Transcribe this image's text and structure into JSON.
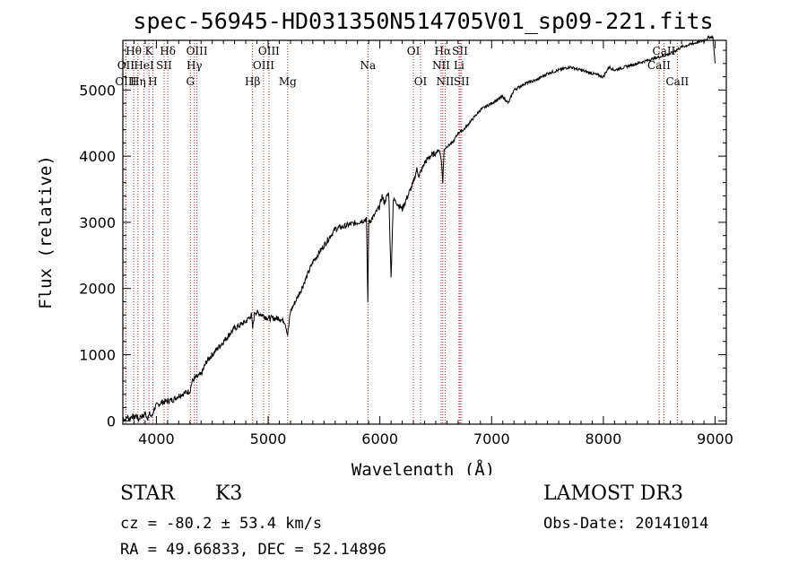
{
  "chart_data": {
    "type": "line",
    "title": "spec-56945-HD031350N514705V01_sp09-221.fits",
    "xlabel": "Wavelength (Å)",
    "ylabel": "Flux (relative)",
    "xlim": [
      3700,
      9100
    ],
    "ylim": [
      -50,
      5750
    ],
    "x_ticks": [
      4000,
      5000,
      6000,
      7000,
      8000,
      9000
    ],
    "y_ticks": [
      0,
      1000,
      2000,
      3000,
      4000,
      5000
    ],
    "grid": false,
    "series": [
      {
        "name": "flux",
        "x": [
          3700,
          3720,
          3740,
          3760,
          3780,
          3800,
          3820,
          3840,
          3860,
          3880,
          3900,
          3920,
          3940,
          3960,
          3980,
          4000,
          4050,
          4100,
          4150,
          4200,
          4250,
          4300,
          4320,
          4350,
          4400,
          4450,
          4500,
          4600,
          4700,
          4800,
          4850,
          4862,
          4880,
          4950,
          5000,
          5100,
          5150,
          5175,
          5200,
          5300,
          5400,
          5500,
          5600,
          5700,
          5800,
          5880,
          5892,
          5900,
          5950,
          6000,
          6020,
          6040,
          6080,
          6100,
          6120,
          6150,
          6200,
          6250,
          6300,
          6330,
          6350,
          6400,
          6450,
          6500,
          6530,
          6550,
          6563,
          6575,
          6600,
          6650,
          6700,
          6750,
          6800,
          6900,
          7000,
          7100,
          7150,
          7200,
          7300,
          7400,
          7500,
          7600,
          7700,
          7800,
          7900,
          8000,
          8050,
          8100,
          8200,
          8300,
          8400,
          8500,
          8600,
          8700,
          8800,
          8900,
          8950,
          8980,
          9000
        ],
        "y": [
          50,
          20,
          60,
          30,
          80,
          40,
          90,
          10,
          80,
          60,
          120,
          50,
          100,
          60,
          180,
          230,
          280,
          300,
          320,
          380,
          420,
          450,
          600,
          650,
          700,
          900,
          1000,
          1200,
          1400,
          1500,
          1600,
          1400,
          1650,
          1600,
          1550,
          1550,
          1500,
          1300,
          1650,
          2000,
          2400,
          2650,
          2900,
          2950,
          3000,
          3050,
          1800,
          3000,
          3100,
          3250,
          3400,
          3300,
          3450,
          2150,
          3350,
          3300,
          3200,
          3400,
          3600,
          3800,
          3700,
          3900,
          4000,
          4050,
          4100,
          3950,
          3600,
          4100,
          4150,
          4200,
          4350,
          4400,
          4500,
          4700,
          4800,
          4900,
          4800,
          5000,
          5100,
          5150,
          5250,
          5300,
          5350,
          5300,
          5250,
          5200,
          5350,
          5300,
          5350,
          5400,
          5450,
          5500,
          5550,
          5650,
          5700,
          5750,
          5800,
          5800,
          5400
        ]
      }
    ],
    "lines": [
      {
        "label": "Hθ",
        "x": 3797,
        "row": 0
      },
      {
        "label": "OII",
        "x": 3727,
        "row": 1
      },
      {
        "label": "OIII",
        "x": 3727,
        "row": 2
      },
      {
        "label": "K",
        "x": 3934,
        "row": 0
      },
      {
        "label": "HeI",
        "x": 3889,
        "row": 1
      },
      {
        "label": "Hη",
        "x": 3835,
        "row": 2
      },
      {
        "label": "Hδ",
        "x": 4102,
        "row": 0
      },
      {
        "label": "SII",
        "x": 4069,
        "row": 1
      },
      {
        "label": "H",
        "x": 3968,
        "row": 2
      },
      {
        "label": "OIII",
        "x": 4363,
        "row": 0
      },
      {
        "label": "Hγ",
        "x": 4340,
        "row": 1
      },
      {
        "label": "G",
        "x": 4304,
        "row": 2
      },
      {
        "label": "OIII",
        "x": 5007,
        "row": 0
      },
      {
        "label": "OIII",
        "x": 4959,
        "row": 1
      },
      {
        "label": "Hβ",
        "x": 4861,
        "row": 2
      },
      {
        "label": "Mg",
        "x": 5175,
        "row": 2
      },
      {
        "label": "Na",
        "x": 5893,
        "row": 1
      },
      {
        "label": "OI",
        "x": 6300,
        "row": 0
      },
      {
        "label": "OI",
        "x": 6364,
        "row": 2
      },
      {
        "label": "Hα",
        "x": 6563,
        "row": 0
      },
      {
        "label": "SII",
        "x": 6717,
        "row": 0
      },
      {
        "label": "NII",
        "x": 6548,
        "row": 1
      },
      {
        "label": "Li",
        "x": 6708,
        "row": 1
      },
      {
        "label": "NII",
        "x": 6584,
        "row": 2
      },
      {
        "label": "SII",
        "x": 6731,
        "row": 2
      },
      {
        "label": "CaII",
        "x": 8542,
        "row": 0
      },
      {
        "label": "CaII",
        "x": 8498,
        "row": 1
      },
      {
        "label": "CaII",
        "x": 8662,
        "row": 2
      }
    ]
  },
  "info": {
    "object_class": "STAR",
    "subclass": "K3",
    "survey": "LAMOST DR3",
    "redshift": "cz = -80.2 ± 53.4 km/s",
    "obs_date": "Obs-Date: 20141014",
    "coords": "RA =  49.66833, DEC =  52.14896"
  },
  "colors": {
    "spectrum": "#000000",
    "line_markers": "#b22222",
    "axes": "#000000"
  }
}
